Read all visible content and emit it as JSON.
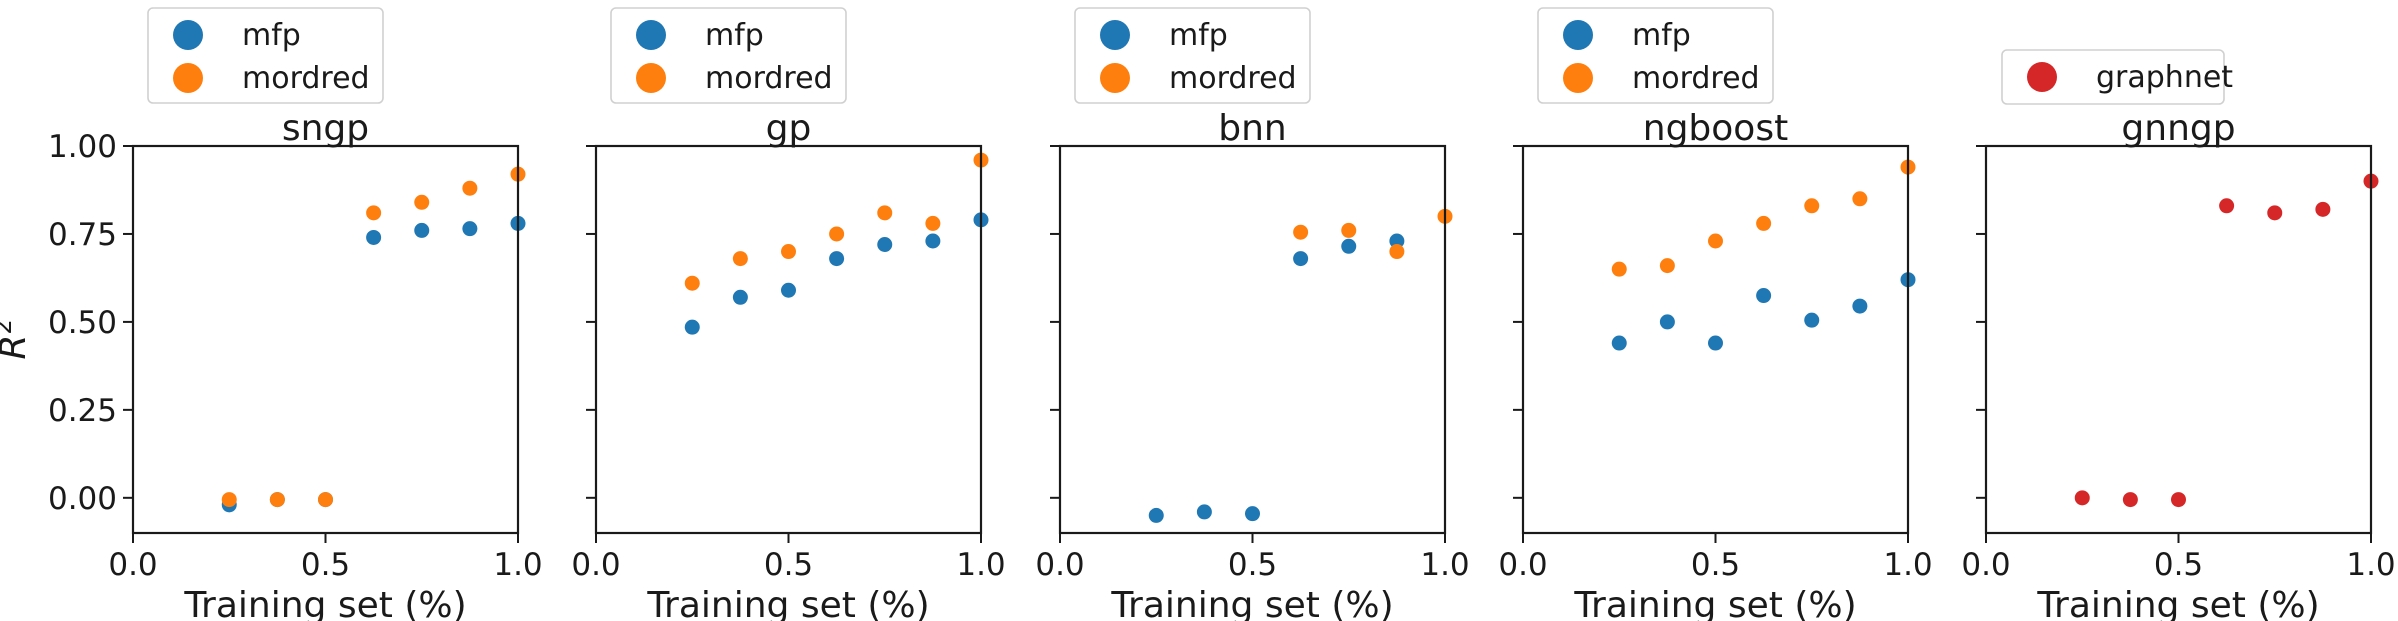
{
  "chart_data": [
    {
      "type": "scatter",
      "title": "sngp",
      "xlabel": "Training set (%)",
      "ylabel": "R²",
      "xlim": [
        0.0,
        1.0
      ],
      "ylim": [
        -0.1,
        1.0
      ],
      "xticks": [
        "0.0",
        "0.5",
        "1.0"
      ],
      "yticks": [
        "0.00",
        "0.25",
        "0.50",
        "0.75",
        "1.00"
      ],
      "legend": "top, outside",
      "series": [
        {
          "name": "mfp",
          "color": "#1f77b4",
          "x": [
            0.25,
            0.375,
            0.5,
            0.625,
            0.75,
            0.875,
            1.0
          ],
          "y": [
            -0.02,
            -0.005,
            -0.005,
            0.74,
            0.76,
            0.765,
            0.78
          ]
        },
        {
          "name": "mordred",
          "color": "#ff7f0e",
          "x": [
            0.25,
            0.375,
            0.5,
            0.625,
            0.75,
            0.875,
            1.0
          ],
          "y": [
            -0.005,
            -0.005,
            -0.005,
            0.81,
            0.84,
            0.88,
            0.92
          ]
        }
      ]
    },
    {
      "type": "scatter",
      "title": "gp",
      "xlabel": "Training set (%)",
      "ylabel": "",
      "xlim": [
        0.0,
        1.0
      ],
      "ylim": [
        -0.1,
        1.0
      ],
      "xticks": [
        "0.0",
        "0.5",
        "1.0"
      ],
      "yticks": [],
      "legend": "top, outside",
      "series": [
        {
          "name": "mfp",
          "color": "#1f77b4",
          "x": [
            0.25,
            0.375,
            0.5,
            0.625,
            0.75,
            0.875,
            1.0
          ],
          "y": [
            0.485,
            0.57,
            0.59,
            0.68,
            0.72,
            0.73,
            0.79
          ]
        },
        {
          "name": "mordred",
          "color": "#ff7f0e",
          "x": [
            0.25,
            0.375,
            0.5,
            0.625,
            0.75,
            0.875,
            1.0
          ],
          "y": [
            0.61,
            0.68,
            0.7,
            0.75,
            0.81,
            0.78,
            0.96
          ]
        }
      ]
    },
    {
      "type": "scatter",
      "title": "bnn",
      "xlabel": "Training set (%)",
      "ylabel": "",
      "xlim": [
        0.0,
        1.0
      ],
      "ylim": [
        -0.1,
        1.0
      ],
      "xticks": [
        "0.0",
        "0.5",
        "1.0"
      ],
      "yticks": [],
      "legend": "top, outside",
      "series": [
        {
          "name": "mfp",
          "color": "#1f77b4",
          "x": [
            0.25,
            0.375,
            0.5,
            0.625,
            0.75,
            0.875
          ],
          "y": [
            -0.05,
            -0.04,
            -0.045,
            0.68,
            0.715,
            0.73
          ]
        },
        {
          "name": "mordred",
          "color": "#ff7f0e",
          "x": [
            0.625,
            0.75,
            0.875,
            1.0
          ],
          "y": [
            0.755,
            0.76,
            0.7,
            0.8
          ]
        }
      ]
    },
    {
      "type": "scatter",
      "title": "ngboost",
      "xlabel": "Training set (%)",
      "ylabel": "",
      "xlim": [
        0.0,
        1.0
      ],
      "ylim": [
        -0.1,
        1.0
      ],
      "xticks": [
        "0.0",
        "0.5",
        "1.0"
      ],
      "yticks": [],
      "legend": "top, outside",
      "series": [
        {
          "name": "mfp",
          "color": "#1f77b4",
          "x": [
            0.25,
            0.375,
            0.5,
            0.625,
            0.75,
            0.875,
            1.0
          ],
          "y": [
            0.44,
            0.5,
            0.44,
            0.575,
            0.505,
            0.545,
            0.62
          ]
        },
        {
          "name": "mordred",
          "color": "#ff7f0e",
          "x": [
            0.25,
            0.375,
            0.5,
            0.625,
            0.75,
            0.875,
            1.0
          ],
          "y": [
            0.65,
            0.66,
            0.73,
            0.78,
            0.83,
            0.85,
            0.94
          ]
        }
      ]
    },
    {
      "type": "scatter",
      "title": "gnngp",
      "xlabel": "Training set (%)",
      "ylabel": "",
      "xlim": [
        0.0,
        1.0
      ],
      "ylim": [
        -0.1,
        1.0
      ],
      "xticks": [
        "0.0",
        "0.5",
        "1.0"
      ],
      "yticks": [],
      "legend": "top, outside",
      "series": [
        {
          "name": "graphnet",
          "color": "#d62728",
          "x": [
            0.25,
            0.375,
            0.5,
            0.625,
            0.75,
            0.875,
            1.0
          ],
          "y": [
            0.0,
            -0.005,
            -0.005,
            0.83,
            0.81,
            0.82,
            0.9
          ]
        }
      ]
    }
  ]
}
